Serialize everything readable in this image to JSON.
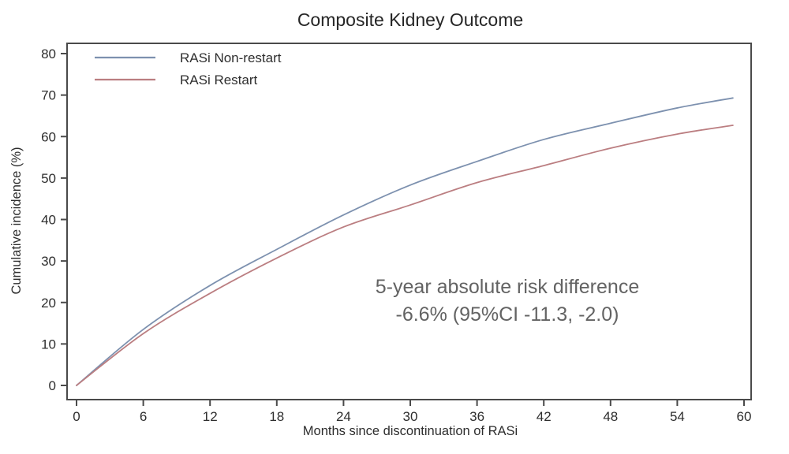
{
  "title": "Composite Kidney Outcome",
  "axes": {
    "xlabel": "Months since discontinuation of RASi",
    "ylabel": "Cumulative incidence (%)"
  },
  "legend": {
    "items": [
      {
        "label": "RASi Non-restart",
        "color": "#7d91af"
      },
      {
        "label": "RASi Restart",
        "color": "#bb7e81"
      }
    ]
  },
  "annotation": {
    "line1": "5-year absolute risk difference",
    "line2": "-6.6% (95%CI -11.3, -2.0)"
  },
  "chart_data": {
    "type": "line",
    "title": "Composite Kidney Outcome",
    "xlabel": "Months since discontinuation of RASi",
    "ylabel": "Cumulative incidence (%)",
    "xlim": [
      0,
      60
    ],
    "ylim": [
      0,
      80
    ],
    "x_ticks": [
      0,
      6,
      12,
      18,
      24,
      30,
      36,
      42,
      48,
      54,
      60
    ],
    "y_ticks": [
      0,
      10,
      20,
      30,
      40,
      50,
      60,
      70,
      80
    ],
    "grid": false,
    "legend_position": "top-left",
    "x": [
      0,
      6,
      12,
      18,
      24,
      30,
      36,
      42,
      48,
      54,
      59
    ],
    "series": [
      {
        "name": "RASi Non-restart",
        "color": "#7d91af",
        "values": [
          0,
          13.5,
          24.1,
          32.8,
          41.1,
          48.3,
          54.0,
          59.3,
          63.2,
          66.9,
          69.3
        ]
      },
      {
        "name": "RASi Restart",
        "color": "#bb7e81",
        "values": [
          0,
          12.5,
          22.2,
          30.7,
          38.2,
          43.5,
          48.9,
          53.0,
          57.2,
          60.6,
          62.7
        ]
      }
    ],
    "annotation": "5-year absolute risk difference\n-6.6% (95%CI -11.3, -2.0)"
  }
}
